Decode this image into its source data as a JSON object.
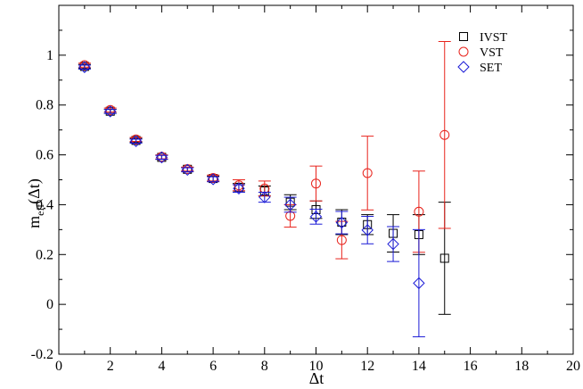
{
  "chart_data": {
    "type": "scatter",
    "title": "",
    "xlabel": "Δt",
    "ylabel_main": "m",
    "ylabel_sub": "eff",
    "ylabel_tail": "(Δt)",
    "xlim": [
      0,
      20
    ],
    "ylim": [
      -0.2,
      1.2
    ],
    "xticks": [
      "0",
      "2",
      "4",
      "6",
      "8",
      "10",
      "12",
      "14",
      "16",
      "18",
      "20"
    ],
    "yticks": [
      "-0.2",
      "0",
      "0.2",
      "0.4",
      "0.6",
      "0.8",
      "1"
    ],
    "grid": false,
    "legend_position": "top-right",
    "series": [
      {
        "name": "IVST",
        "marker": "square",
        "color": "#000000",
        "points": [
          {
            "x": 1,
            "y": 0.955,
            "err": 0.008
          },
          {
            "x": 2,
            "y": 0.775,
            "err": 0.008
          },
          {
            "x": 3,
            "y": 0.658,
            "err": 0.008
          },
          {
            "x": 4,
            "y": 0.59,
            "err": 0.008
          },
          {
            "x": 5,
            "y": 0.542,
            "err": 0.008
          },
          {
            "x": 6,
            "y": 0.505,
            "err": 0.01
          },
          {
            "x": 7,
            "y": 0.47,
            "err": 0.015
          },
          {
            "x": 8,
            "y": 0.455,
            "err": 0.02
          },
          {
            "x": 9,
            "y": 0.41,
            "err": 0.03
          },
          {
            "x": 10,
            "y": 0.38,
            "err": 0.035
          },
          {
            "x": 11,
            "y": 0.33,
            "err": 0.05
          },
          {
            "x": 12,
            "y": 0.32,
            "err": 0.04
          },
          {
            "x": 13,
            "y": 0.285,
            "err": 0.075
          },
          {
            "x": 14,
            "y": 0.28,
            "err": 0.08
          },
          {
            "x": 15,
            "y": 0.185,
            "err": 0.225
          }
        ]
      },
      {
        "name": "VST",
        "marker": "circle",
        "color": "#e8231c",
        "points": [
          {
            "x": 1,
            "y": 0.96,
            "err": 0.008
          },
          {
            "x": 2,
            "y": 0.78,
            "err": 0.008
          },
          {
            "x": 3,
            "y": 0.662,
            "err": 0.008
          },
          {
            "x": 4,
            "y": 0.592,
            "err": 0.008
          },
          {
            "x": 5,
            "y": 0.543,
            "err": 0.008
          },
          {
            "x": 6,
            "y": 0.507,
            "err": 0.012
          },
          {
            "x": 7,
            "y": 0.478,
            "err": 0.022
          },
          {
            "x": 8,
            "y": 0.465,
            "err": 0.03
          },
          {
            "x": 9,
            "y": 0.355,
            "err": 0.045
          },
          {
            "x": 10,
            "y": 0.485,
            "err": 0.07
          },
          {
            "x": 11,
            "y": 0.258,
            "err": 0.075
          },
          {
            "x": 12,
            "y": 0.527,
            "err": 0.148
          },
          {
            "x": 14,
            "y": 0.372,
            "err": 0.163
          },
          {
            "x": 15,
            "y": 0.68,
            "err": 0.375
          }
        ]
      },
      {
        "name": "SET",
        "marker": "diamond",
        "color": "#1a1ad6",
        "points": [
          {
            "x": 1,
            "y": 0.952,
            "err": 0.008
          },
          {
            "x": 2,
            "y": 0.774,
            "err": 0.008
          },
          {
            "x": 3,
            "y": 0.655,
            "err": 0.008
          },
          {
            "x": 4,
            "y": 0.59,
            "err": 0.008
          },
          {
            "x": 5,
            "y": 0.54,
            "err": 0.008
          },
          {
            "x": 6,
            "y": 0.502,
            "err": 0.01
          },
          {
            "x": 7,
            "y": 0.465,
            "err": 0.015
          },
          {
            "x": 8,
            "y": 0.43,
            "err": 0.02
          },
          {
            "x": 9,
            "y": 0.4,
            "err": 0.03
          },
          {
            "x": 10,
            "y": 0.352,
            "err": 0.03
          },
          {
            "x": 11,
            "y": 0.328,
            "err": 0.045
          },
          {
            "x": 12,
            "y": 0.298,
            "err": 0.055
          },
          {
            "x": 13,
            "y": 0.242,
            "err": 0.07
          },
          {
            "x": 14,
            "y": 0.085,
            "err": 0.215
          }
        ]
      }
    ]
  }
}
